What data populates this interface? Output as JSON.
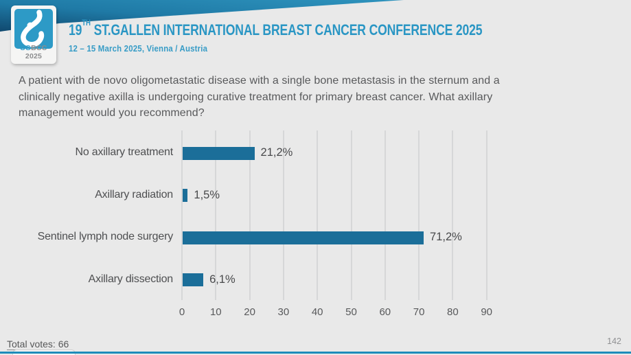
{
  "logo": {
    "text_sg": "SG",
    "text_bcc": "BCC",
    "text_year": "2025"
  },
  "header": {
    "title_num": "19",
    "title_sup": "TH",
    "title_rest": " ST.GALLEN INTERNATIONAL BREAST CANCER CONFERENCE 2025",
    "subtitle": "12 – 15 March 2025, Vienna / Austria"
  },
  "question": {
    "lines": [
      "A patient with de novo oligometastatic disease with a single bone metastasis in the sternum and a",
      "clinically negative axilla is undergoing curative treatment for primary breast cancer. What axillary",
      "management would you recommend?"
    ]
  },
  "chart_data": {
    "type": "bar",
    "orientation": "horizontal",
    "categories": [
      "No axillary treatment",
      "Axillary radiation",
      "Sentinel lymph node surgery",
      "Axillary dissection"
    ],
    "values": [
      21.2,
      1.5,
      71.2,
      6.1
    ],
    "value_labels": [
      "21,2%",
      "1,5%",
      "71,2%",
      "6,1%"
    ],
    "x_ticks": [
      0,
      10,
      20,
      30,
      40,
      50,
      60,
      70,
      80,
      90
    ],
    "xlim": [
      0,
      100
    ],
    "grid": true,
    "legend_position": "none",
    "bar_color": "#1b6e99",
    "title": "",
    "xlabel": "",
    "ylabel": ""
  },
  "footer": {
    "total_votes": "Total votes: 66",
    "page_number": "142"
  },
  "colors": {
    "accent_teal": "#2a96c4",
    "logo_tile": "#2d9ac6",
    "banner_light": "#2e93bd",
    "banner_dark": "#10496f",
    "bar": "#1b6e99",
    "body_text": "#58595b",
    "background": "#e9e9e9"
  }
}
